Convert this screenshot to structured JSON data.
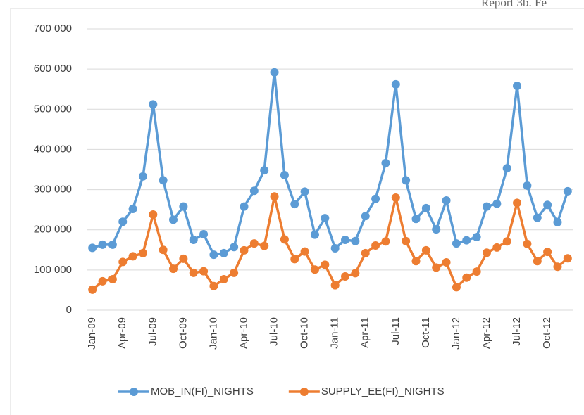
{
  "header_text": "Report 3b. Fe",
  "chart_data": {
    "type": "line",
    "categories": [
      "Jan-09",
      null,
      null,
      "Apr-09",
      null,
      null,
      "Jul-09",
      null,
      null,
      "Oct-09",
      null,
      null,
      "Jan-10",
      null,
      null,
      "Apr-10",
      null,
      null,
      "Jul-10",
      null,
      null,
      "Oct-10",
      null,
      null,
      "Jan-11",
      null,
      null,
      "Apr-11",
      null,
      null,
      "Jul-11",
      null,
      null,
      "Oct-11",
      null,
      null,
      "Jan-12",
      null,
      null,
      "Apr-12",
      null,
      null,
      "Jul-12",
      null,
      null,
      "Oct-12",
      null,
      null
    ],
    "series": [
      {
        "name": "MOB_IN(FI)_NIGHTS",
        "color": "#5b9bd5",
        "values": [
          155000,
          163000,
          163000,
          220000,
          252000,
          333000,
          512000,
          323000,
          225000,
          258000,
          175000,
          189000,
          138000,
          142000,
          157000,
          258000,
          297000,
          348000,
          592000,
          336000,
          264000,
          295000,
          188000,
          229000,
          154000,
          175000,
          172000,
          234000,
          277000,
          366000,
          562000,
          323000,
          227000,
          254000,
          201000,
          273000,
          166000,
          174000,
          182000,
          258000,
          265000,
          353000,
          558000,
          310000,
          230000,
          262000,
          219000,
          296000
        ]
      },
      {
        "name": "SUPPLY_EE(FI)_NIGHTS",
        "color": "#ed7d31",
        "values": [
          51000,
          72000,
          77000,
          120000,
          134000,
          142000,
          238000,
          150000,
          103000,
          128000,
          93000,
          97000,
          60000,
          77000,
          93000,
          149000,
          166000,
          160000,
          283000,
          176000,
          127000,
          146000,
          101000,
          113000,
          62000,
          84000,
          92000,
          142000,
          161000,
          171000,
          280000,
          172000,
          122000,
          149000,
          106000,
          119000,
          57000,
          81000,
          96000,
          143000,
          156000,
          171000,
          267000,
          165000,
          122000,
          145000,
          108000,
          129000
        ]
      }
    ],
    "ylim": [
      0,
      700000
    ],
    "yticks": [
      0,
      {
        "value": 100000,
        "label": "100 000"
      },
      {
        "value": 200000,
        "label": "200 000"
      },
      {
        "value": 300000,
        "label": "300 000"
      },
      {
        "value": 400000,
        "label": "400 000"
      },
      {
        "value": 500000,
        "label": "500 000"
      },
      {
        "value": 600000,
        "label": "600 000"
      },
      {
        "value": 700000,
        "label": "700 000"
      }
    ],
    "grid": true,
    "legend": "bottom"
  }
}
